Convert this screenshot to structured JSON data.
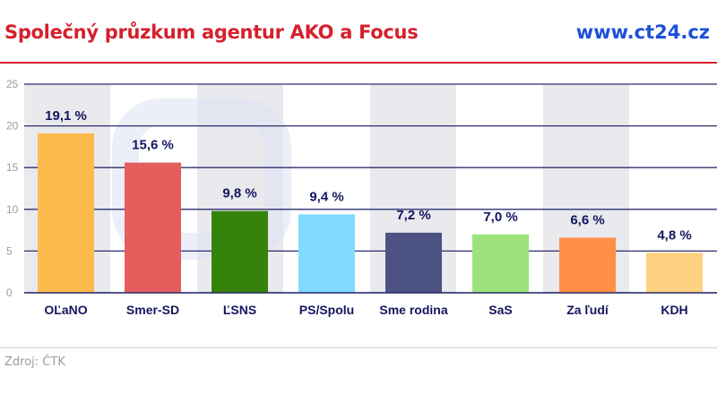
{
  "header": {
    "title": "Společný průzkum agentur AKO a Focus",
    "brand": "www.ct24.cz"
  },
  "footer": {
    "source": "Zdroj: ČTK"
  },
  "chart_data": {
    "type": "bar",
    "categories": [
      "OĽaNO",
      "Smer-SD",
      "ĽSNS",
      "PS/Spolu",
      "Sme rodina",
      "SaS",
      "Za ľudí",
      "KDH"
    ],
    "values": [
      19.1,
      15.6,
      9.8,
      9.4,
      7.2,
      7.0,
      6.6,
      4.8
    ],
    "data_labels": [
      "19,1 %",
      "15,6 %",
      "9,8 %",
      "9,4 %",
      "7,2 %",
      "7,0 %",
      "6,6 %",
      "4,8 %"
    ],
    "colors": [
      "#fdbb4d",
      "#e45e5e",
      "#35830a",
      "#80dbff",
      "#4c5382",
      "#9be37a",
      "#ff8f47",
      "#ffd180"
    ],
    "yticks": [
      0,
      5,
      10,
      15,
      20,
      25
    ],
    "ylim": [
      0,
      25
    ],
    "grid": true,
    "gridColor": "#2b2f6e",
    "labelColor": "#14165e",
    "title": "Společný průzkum agentur AKO a Focus",
    "xlabel": "",
    "ylabel": ""
  }
}
